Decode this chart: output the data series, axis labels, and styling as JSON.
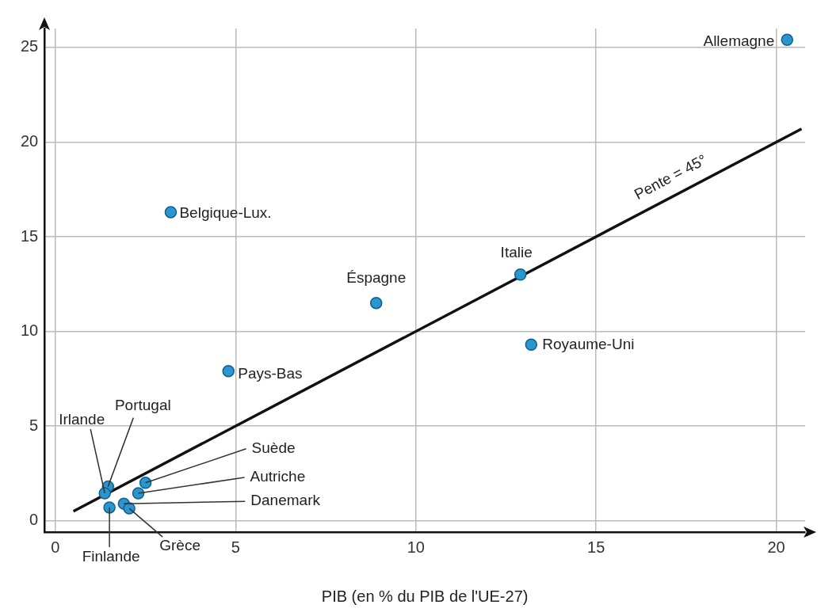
{
  "chart_data": {
    "type": "scatter",
    "xlabel": "PIB (en % du PIB de l'UE-27)",
    "xlim": [
      -0.3,
      20.8
    ],
    "ylim": [
      -0.6,
      26
    ],
    "xticks": [
      0,
      5,
      10,
      15,
      20
    ],
    "yticks": [
      0,
      5,
      10,
      15,
      20,
      25
    ],
    "grid": true,
    "marker": "circle",
    "series": [
      {
        "type": "scatter",
        "color": "#2a96d0",
        "x": [
          20.3,
          3.2,
          8.9,
          12.9,
          13.2,
          4.8,
          1.46,
          1.37,
          2.5,
          2.3,
          1.9,
          2.05,
          1.5
        ],
        "values": [
          25.4,
          16.3,
          11.5,
          13.0,
          9.3,
          7.9,
          1.8,
          1.45,
          2.0,
          1.45,
          0.9,
          0.65,
          0.7
        ]
      },
      {
        "type": "line",
        "color": "#111111",
        "marker": "none",
        "x": [
          0.5,
          20.7
        ],
        "values": [
          0.5,
          20.7
        ]
      }
    ],
    "annotations": [
      {
        "text": "Allemagne",
        "x": 20.3,
        "y": 25.4
      },
      {
        "text": "Belgique-Lux.",
        "x": 3.2,
        "y": 16.3
      },
      {
        "text": "Éspagne",
        "x": 8.9,
        "y": 11.5
      },
      {
        "text": "Italie",
        "x": 12.9,
        "y": 13.0
      },
      {
        "text": "Royaume-Uni",
        "x": 13.2,
        "y": 9.3
      },
      {
        "text": "Pays-Bas",
        "x": 4.8,
        "y": 7.9
      },
      {
        "text": "Portugal",
        "x": 1.46,
        "y": 1.8
      },
      {
        "text": "Irlande",
        "x": 1.37,
        "y": 1.45
      },
      {
        "text": "Suède",
        "x": 2.5,
        "y": 2.0
      },
      {
        "text": "Autriche",
        "x": 2.3,
        "y": 1.45
      },
      {
        "text": "Danemark",
        "x": 1.9,
        "y": 0.9
      },
      {
        "text": "Grèce",
        "x": 2.05,
        "y": 0.65
      },
      {
        "text": "Finlande",
        "x": 1.5,
        "y": 0.7
      },
      {
        "text": "Pente = 45°",
        "x": 17.3,
        "y": 17.3
      }
    ]
  }
}
